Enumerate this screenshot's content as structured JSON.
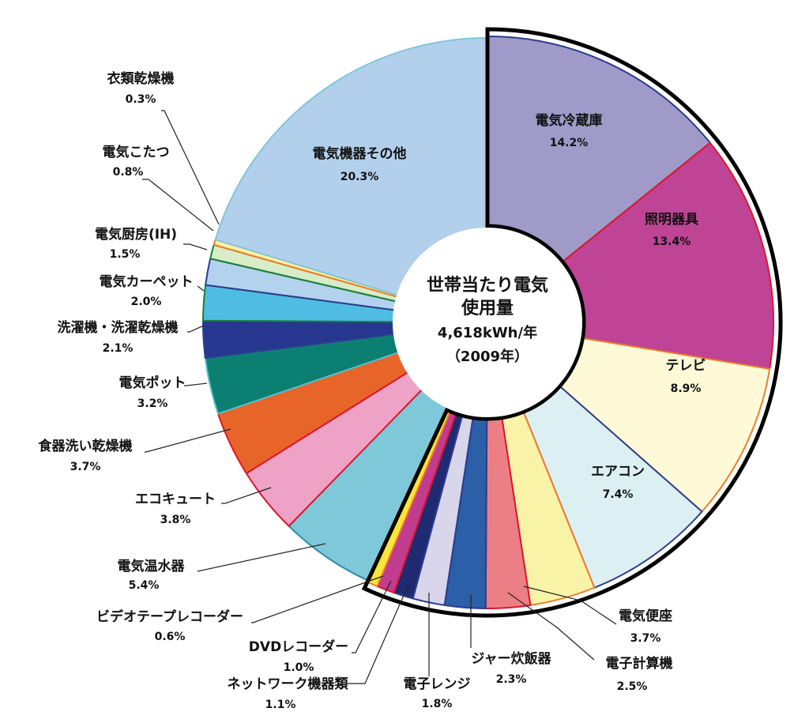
{
  "chart_data": {
    "type": "pie",
    "title": "",
    "center_label": {
      "line1": "世帯当たり電気",
      "line2": "使用量",
      "line3": "4,618kWh/年",
      "line4": "（2009年）"
    },
    "slices": [
      {
        "name": "電気冷蔵庫",
        "value": 14.2,
        "value_label": "14.2%",
        "color": "#9f9ac8",
        "stroke": "#2b3d8f"
      },
      {
        "name": "照明器具",
        "value": 13.4,
        "value_label": "13.4%",
        "color": "#bf4495",
        "stroke": "#e0142a"
      },
      {
        "name": "テレビ",
        "value": 8.9,
        "value_label": "8.9%",
        "color": "#fefad8",
        "stroke": "#ee7d2b"
      },
      {
        "name": "エアコン",
        "value": 7.4,
        "value_label": "7.4%",
        "color": "#dcf0f4",
        "stroke": "#2b3d8f"
      },
      {
        "name": "電気便座",
        "value": 3.7,
        "value_label": "3.7%",
        "color": "#f8f3a6",
        "stroke": "#ee7d2b"
      },
      {
        "name": "電子計算機",
        "value": 2.5,
        "value_label": "2.5%",
        "color": "#ec7f86",
        "stroke": "#e0142a"
      },
      {
        "name": "ジャー炊飯器",
        "value": 2.3,
        "value_label": "2.3%",
        "color": "#2b5fa7",
        "stroke": "#2b3d8f"
      },
      {
        "name": "電子レンジ",
        "value": 1.8,
        "value_label": "1.8%",
        "color": "#d9d5ea",
        "stroke": "#2b3d8f"
      },
      {
        "name": "ネットワーク機器類",
        "value": 1.1,
        "value_label": "1.1%",
        "color": "#1f2a73",
        "stroke": "#2b3d8f"
      },
      {
        "name": "DVDレコーダー",
        "value": 1.0,
        "value_label": "1.0%",
        "color": "#c13c8f",
        "stroke": "#e0142a"
      },
      {
        "name": "ビデオテープレコーダー",
        "value": 0.6,
        "value_label": "0.6%",
        "color": "#f7e63a",
        "stroke": "#ee7d2b"
      },
      {
        "name": "電気温水器",
        "value": 5.4,
        "value_label": "5.4%",
        "color": "#7ec8da",
        "stroke": "#2b8fb0"
      },
      {
        "name": "エコキュート",
        "value": 3.8,
        "value_label": "3.8%",
        "color": "#eea2c5",
        "stroke": "#e0142a"
      },
      {
        "name": "食器洗い乾燥機",
        "value": 3.7,
        "value_label": "3.7%",
        "color": "#e8652a",
        "stroke": "#e0142a"
      },
      {
        "name": "電気ポット",
        "value": 3.2,
        "value_label": "3.2%",
        "color": "#0b7f72",
        "stroke": "#5bc0c8"
      },
      {
        "name": "洗濯機・洗濯乾燥機",
        "value": 2.1,
        "value_label": "2.1%",
        "color": "#27378f",
        "stroke": "#2b3d8f"
      },
      {
        "name": "電気カーペット",
        "value": 2.0,
        "value_label": "2.0%",
        "color": "#4fbde3",
        "stroke": "#1a7f3a"
      },
      {
        "name": "電気厨房(IH)",
        "value": 1.5,
        "value_label": "1.5%",
        "color": "#b3d2ee",
        "stroke": "#2b3d8f"
      },
      {
        "name": "電気こたつ",
        "value": 0.8,
        "value_label": "0.8%",
        "color": "#d8ecc5",
        "stroke": "#1a7f3a"
      },
      {
        "name": "衣類乾燥機",
        "value": 0.3,
        "value_label": "0.3%",
        "color": "#f7f3a8",
        "stroke": "#ee7d2b"
      },
      {
        "name": "電気機器その他",
        "value": 20.3,
        "value_label": "20.3%",
        "color": "#b2d0ec",
        "stroke": "#7fc6dc"
      }
    ]
  }
}
